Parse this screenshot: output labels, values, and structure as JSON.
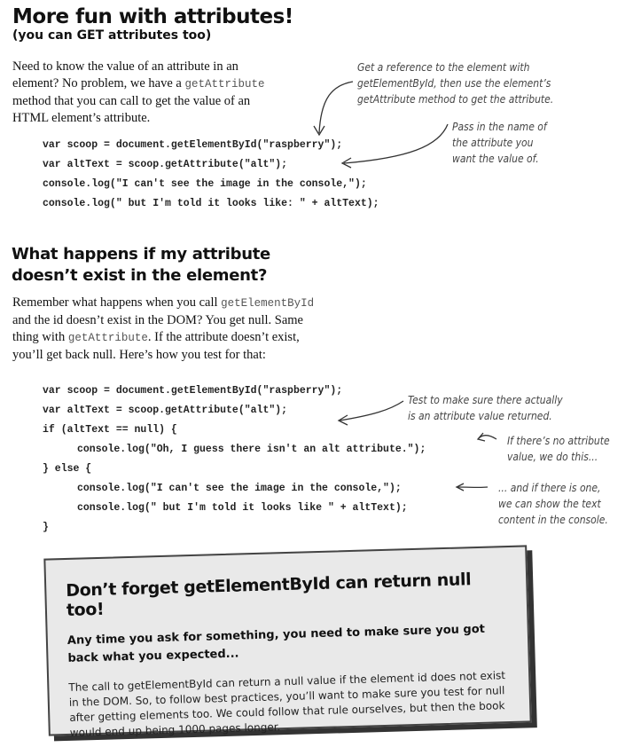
{
  "section1": {
    "title": "More fun with attributes!",
    "subtitle": "(you can GET attributes too)",
    "intro": [
      "Need to know the value of an attribute in an element? No problem, we have a ",
      "getAttribute",
      " method that you can call to get the value of an HTML element’s attribute."
    ],
    "code": [
      "var scoop = document.getElementById(\"raspberry\");",
      "var altText = scoop.getAttribute(\"alt\");",
      "console.log(\"I can't see the image in the console,\");",
      "console.log(\" but I'm told it looks like: \" + altText);"
    ],
    "notes": [
      [
        "Get a reference to the element with",
        "getElementById, then use the element’s",
        "getAttribute method to get the attribute."
      ],
      [
        "Pass in the name of",
        "the attribute you",
        "want the value of."
      ]
    ]
  },
  "section2": {
    "title": "What happens if my attribute doesn’t exist in the element?",
    "intro": [
      "Remember what happens when you call ",
      "getElementById",
      " and the id doesn’t exist in the DOM? You get null. Same thing with ",
      "getAttribute",
      ". If the attribute doesn’t exist, you’ll get back null. Here’s how you test for that:"
    ],
    "code": [
      "var scoop = document.getElementById(\"raspberry\");",
      "var altText = scoop.getAttribute(\"alt\");",
      "if (altText == null) {",
      "console.log(\"Oh, I guess there isn't an alt attribute.\");",
      "} else {",
      "console.log(\"I can't see the image in the console,\");",
      "console.log(\" but I'm told it looks like \" + altText);",
      "}"
    ],
    "notes": [
      [
        "Test to make sure there actually",
        "is an attribute value returned."
      ],
      [
        "If there’s no attribute",
        "value, we do this..."
      ],
      [
        "... and if there is one,",
        "we can show the text",
        "content in the console."
      ]
    ]
  },
  "callout": {
    "title": "Don’t forget getElementById can return null too!",
    "lead": "Any time you ask for something, you need to make sure you got back what you expected...",
    "body": "The call to getElementById can return a null value if the element id does not exist in the DOM. So, to follow best practices, you’ll want to make sure you test for null after getting elements too. We could follow that rule ourselves, but then the book would end up being 1000 pages longer."
  }
}
